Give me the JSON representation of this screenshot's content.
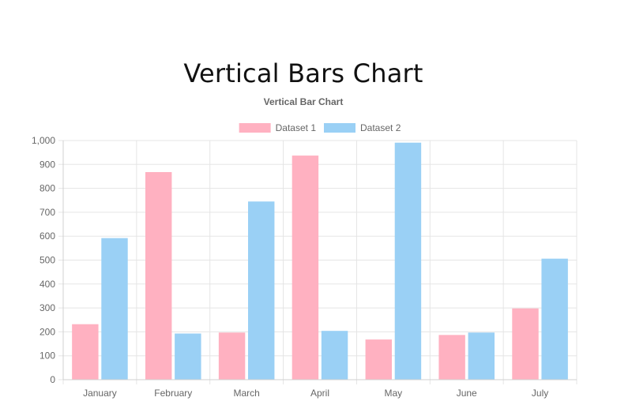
{
  "page": {
    "title": "Vertical Bars Chart"
  },
  "chart_data": {
    "type": "bar",
    "title": "Vertical Bar Chart",
    "categories": [
      "January",
      "February",
      "March",
      "April",
      "May",
      "June",
      "July"
    ],
    "series": [
      {
        "name": "Dataset 1",
        "values": [
          232,
          868,
          197,
          937,
          168,
          187,
          298
        ],
        "color": "#ffb1c1",
        "border_color": "#ff6384"
      },
      {
        "name": "Dataset 2",
        "values": [
          592,
          193,
          745,
          204,
          991,
          197,
          506
        ],
        "color": "#9ad0f5",
        "border_color": "#36a2eb"
      }
    ],
    "ylim": [
      0,
      1000
    ],
    "y_ticks": [
      "0",
      "100",
      "200",
      "300",
      "400",
      "500",
      "600",
      "700",
      "800",
      "900",
      "1,000"
    ],
    "y_tick_values": [
      0,
      100,
      200,
      300,
      400,
      500,
      600,
      700,
      800,
      900,
      1000
    ],
    "grid": true,
    "legend_position": "top"
  }
}
